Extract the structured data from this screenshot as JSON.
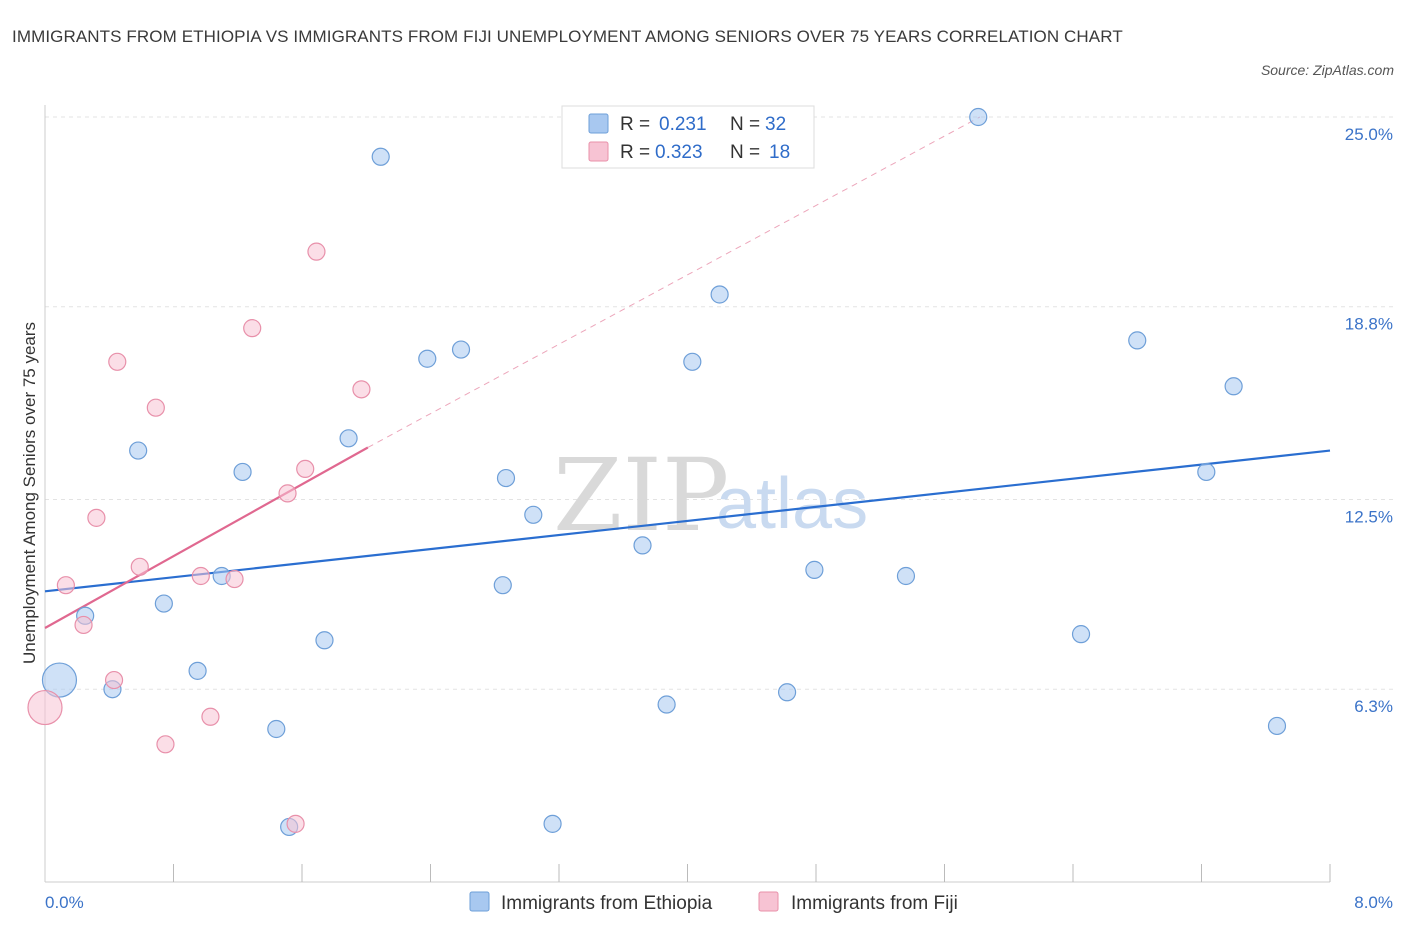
{
  "title": "IMMIGRANTS FROM ETHIOPIA VS IMMIGRANTS FROM FIJI UNEMPLOYMENT AMONG SENIORS OVER 75 YEARS CORRELATION CHART",
  "source": "Source: ZipAtlas.com",
  "watermark": {
    "zip": "ZIP",
    "atlas": "atlas"
  },
  "chart_data": {
    "type": "scatter",
    "title": "IMMIGRANTS FROM ETHIOPIA VS IMMIGRANTS FROM FIJI UNEMPLOYMENT AMONG SENIORS OVER 75 YEARS CORRELATION CHART",
    "xlabel": "",
    "ylabel": "Unemployment Among Seniors over 75 years",
    "xlim": [
      0,
      8
    ],
    "ylim": [
      0,
      25
    ],
    "x_tick_labels": [
      {
        "value": 0,
        "label": "0.0%"
      },
      {
        "value": 8,
        "label": "8.0%"
      }
    ],
    "y_tick_labels": [
      {
        "value": 25.0,
        "label": "25.0%"
      },
      {
        "value": 18.8,
        "label": "18.8%"
      },
      {
        "value": 12.5,
        "label": "12.5%"
      },
      {
        "value": 6.3,
        "label": "6.3%"
      }
    ],
    "grid": true,
    "legend_position": "top-center",
    "series": [
      {
        "name": "Immigrants from Ethiopia",
        "color": "#a8c8f0",
        "stroke": "#6e9fd8",
        "line_color": "#2a6ed0",
        "R": "0.231",
        "N": "32",
        "trend": {
          "x": [
            0,
            8
          ],
          "y": [
            9.5,
            14.1
          ],
          "dashed_extension": false
        },
        "points": [
          {
            "x": 0.09,
            "y": 6.6,
            "size": "large"
          },
          {
            "x": 0.25,
            "y": 8.7
          },
          {
            "x": 0.42,
            "y": 6.3
          },
          {
            "x": 0.58,
            "y": 14.1
          },
          {
            "x": 0.74,
            "y": 9.1
          },
          {
            "x": 0.95,
            "y": 6.9
          },
          {
            "x": 1.1,
            "y": 10.0
          },
          {
            "x": 1.23,
            "y": 13.4
          },
          {
            "x": 1.44,
            "y": 5.0
          },
          {
            "x": 1.52,
            "y": 1.8
          },
          {
            "x": 1.74,
            "y": 7.9
          },
          {
            "x": 1.89,
            "y": 14.5
          },
          {
            "x": 2.09,
            "y": 23.7
          },
          {
            "x": 2.38,
            "y": 17.1
          },
          {
            "x": 2.59,
            "y": 17.4
          },
          {
            "x": 2.85,
            "y": 9.7
          },
          {
            "x": 2.87,
            "y": 13.2
          },
          {
            "x": 3.04,
            "y": 12.0
          },
          {
            "x": 3.16,
            "y": 1.9
          },
          {
            "x": 3.72,
            "y": 11.0
          },
          {
            "x": 3.87,
            "y": 5.8
          },
          {
            "x": 4.03,
            "y": 17.0
          },
          {
            "x": 4.2,
            "y": 19.2
          },
          {
            "x": 4.62,
            "y": 6.2
          },
          {
            "x": 4.79,
            "y": 10.2
          },
          {
            "x": 5.36,
            "y": 10.0
          },
          {
            "x": 5.81,
            "y": 25.0
          },
          {
            "x": 6.45,
            "y": 8.1
          },
          {
            "x": 6.8,
            "y": 17.7
          },
          {
            "x": 7.23,
            "y": 13.4
          },
          {
            "x": 7.4,
            "y": 16.2
          },
          {
            "x": 7.67,
            "y": 5.1
          }
        ]
      },
      {
        "name": "Immigrants from Fiji",
        "color": "#f7c3d3",
        "stroke": "#e890aa",
        "line_color": "#e06890",
        "R": "0.323",
        "N": "18",
        "trend": {
          "x": [
            0,
            2.01
          ],
          "y": [
            8.3,
            14.2
          ],
          "dashed_extension": {
            "x": [
              2.01,
              5.82
            ],
            "y": [
              14.2,
              25.0
            ]
          }
        },
        "points": [
          {
            "x": 0.0,
            "y": 5.7,
            "size": "large"
          },
          {
            "x": 0.13,
            "y": 9.7
          },
          {
            "x": 0.24,
            "y": 8.4
          },
          {
            "x": 0.32,
            "y": 11.9
          },
          {
            "x": 0.43,
            "y": 6.6
          },
          {
            "x": 0.45,
            "y": 17.0
          },
          {
            "x": 0.59,
            "y": 10.3
          },
          {
            "x": 0.69,
            "y": 15.5
          },
          {
            "x": 0.75,
            "y": 4.5
          },
          {
            "x": 0.97,
            "y": 10.0
          },
          {
            "x": 1.03,
            "y": 5.4
          },
          {
            "x": 1.18,
            "y": 9.9
          },
          {
            "x": 1.29,
            "y": 18.1
          },
          {
            "x": 1.51,
            "y": 12.7
          },
          {
            "x": 1.56,
            "y": 1.9
          },
          {
            "x": 1.62,
            "y": 13.5
          },
          {
            "x": 1.69,
            "y": 20.6
          },
          {
            "x": 1.97,
            "y": 16.1
          }
        ]
      }
    ]
  }
}
